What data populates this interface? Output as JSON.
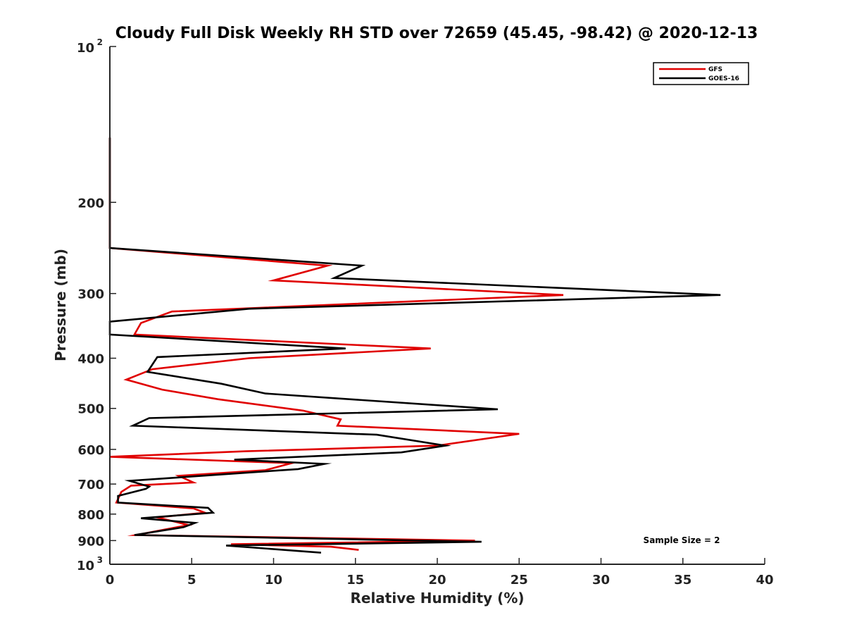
{
  "chart_data": {
    "type": "line",
    "title": "Cloudy Full Disk Weekly RH STD over 72659 (45.45, -98.42) @ 2020-12-13",
    "xlabel": "Relative Humidity (%)",
    "ylabel": "Pressure (mb)",
    "xlim": [
      0,
      40
    ],
    "ylim": [
      100,
      1000
    ],
    "y_scale": "log",
    "y_reversed": true,
    "grid": false,
    "legend_position": "top-right",
    "x_ticks": [
      {
        "value": 0,
        "label": "0"
      },
      {
        "value": 5,
        "label": "5"
      },
      {
        "value": 10,
        "label": "10"
      },
      {
        "value": 15,
        "label": "15"
      },
      {
        "value": 20,
        "label": "20"
      },
      {
        "value": 25,
        "label": "25"
      },
      {
        "value": 30,
        "label": "30"
      },
      {
        "value": 35,
        "label": "35"
      },
      {
        "value": 40,
        "label": "40"
      }
    ],
    "y_ticks": [
      {
        "value": 100,
        "label": "10",
        "sup": "2"
      },
      {
        "value": 200,
        "label": "200"
      },
      {
        "value": 300,
        "label": "300"
      },
      {
        "value": 400,
        "label": "400"
      },
      {
        "value": 500,
        "label": "500"
      },
      {
        "value": 600,
        "label": "600"
      },
      {
        "value": 700,
        "label": "700"
      },
      {
        "value": 800,
        "label": "800"
      },
      {
        "value": 900,
        "label": "900"
      },
      {
        "value": 1000,
        "label": "10",
        "sup": "3"
      }
    ],
    "series": [
      {
        "name": "GFS",
        "color": "#e00000",
        "points": [
          [
            0,
            150
          ],
          [
            0,
            245
          ],
          [
            13.3,
            265
          ],
          [
            10,
            283
          ],
          [
            27.7,
            302
          ],
          [
            3.8,
            325
          ],
          [
            1.9,
            342
          ],
          [
            1.5,
            360
          ],
          [
            19.6,
            383
          ],
          [
            8.5,
            400
          ],
          [
            2.6,
            420
          ],
          [
            1.0,
            440
          ],
          [
            3.2,
            460
          ],
          [
            6.6,
            480
          ],
          [
            11.8,
            505
          ],
          [
            14.1,
            525
          ],
          [
            13.9,
            540
          ],
          [
            25.0,
            560
          ],
          [
            20.0,
            590
          ],
          [
            8.3,
            605
          ],
          [
            0,
            620
          ],
          [
            11.1,
            638
          ],
          [
            9.5,
            658
          ],
          [
            4.2,
            675
          ],
          [
            5.1,
            695
          ],
          [
            1.3,
            705
          ],
          [
            0.7,
            725
          ],
          [
            0.4,
            760
          ],
          [
            5.1,
            780
          ],
          [
            5.8,
            795
          ],
          [
            2.9,
            812
          ],
          [
            4.8,
            840
          ],
          [
            1.6,
            878
          ],
          [
            22.3,
            900
          ],
          [
            7.4,
            915
          ],
          [
            13.5,
            925
          ],
          [
            15.2,
            938
          ]
        ]
      },
      {
        "name": "GOES-16",
        "color": "#000000",
        "points": [
          [
            0,
            150
          ],
          [
            0,
            245
          ],
          [
            15.4,
            265
          ],
          [
            13.7,
            280
          ],
          [
            37.3,
            302
          ],
          [
            8.5,
            321
          ],
          [
            0,
            340
          ],
          [
            0,
            360
          ],
          [
            14.4,
            383
          ],
          [
            2.9,
            398
          ],
          [
            2.3,
            425
          ],
          [
            6.8,
            448
          ],
          [
            9.5,
            468
          ],
          [
            23.7,
            502
          ],
          [
            2.4,
            522
          ],
          [
            1.4,
            540
          ],
          [
            16.3,
            562
          ],
          [
            20.5,
            590
          ],
          [
            17.8,
            608
          ],
          [
            7.6,
            628
          ],
          [
            13.1,
            640
          ],
          [
            11.5,
            655
          ],
          [
            1.2,
            690
          ],
          [
            2.4,
            708
          ],
          [
            2.2,
            715
          ],
          [
            0.5,
            738
          ],
          [
            0.5,
            760
          ],
          [
            6.0,
            778
          ],
          [
            6.3,
            795
          ],
          [
            1.9,
            815
          ],
          [
            5.2,
            832
          ],
          [
            4.5,
            848
          ],
          [
            1.5,
            878
          ],
          [
            22.7,
            905
          ],
          [
            7.1,
            920
          ],
          [
            12.9,
            950
          ]
        ]
      }
    ],
    "annotations": [
      {
        "text": "Sample Size = 2"
      }
    ]
  }
}
